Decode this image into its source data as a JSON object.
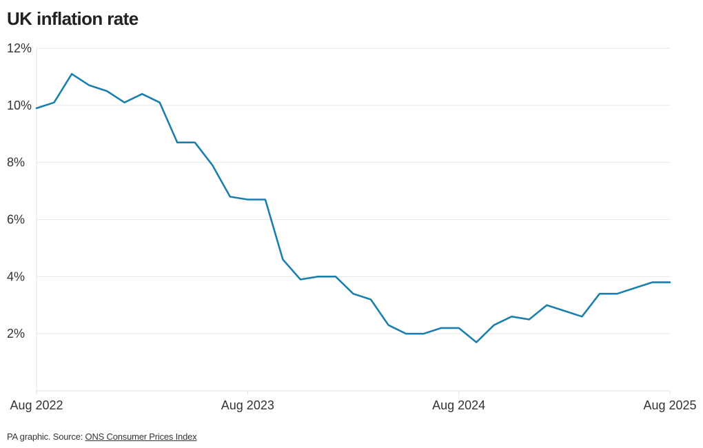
{
  "chart_data": {
    "type": "line",
    "title": "UK inflation rate",
    "xlabel": "",
    "ylabel": "",
    "x_tick_labels": [
      "Aug 2022",
      "Aug 2023",
      "Aug 2024",
      "Aug 2025"
    ],
    "y_tick_labels": [
      "2%",
      "4%",
      "6%",
      "8%",
      "10%",
      "12%"
    ],
    "y_ticks": [
      2,
      4,
      6,
      8,
      10,
      12
    ],
    "ylim": [
      0,
      12
    ],
    "xlim": [
      "2022-08",
      "2025-08"
    ],
    "grid": "horizontal",
    "legend": "none",
    "line_color": "#1a7fad",
    "x": [
      "2022-08",
      "2022-09",
      "2022-10",
      "2022-11",
      "2022-12",
      "2023-01",
      "2023-02",
      "2023-03",
      "2023-04",
      "2023-05",
      "2023-06",
      "2023-07",
      "2023-08",
      "2023-09",
      "2023-10",
      "2023-11",
      "2023-12",
      "2024-01",
      "2024-02",
      "2024-03",
      "2024-04",
      "2024-05",
      "2024-06",
      "2024-07",
      "2024-08",
      "2024-09",
      "2024-10",
      "2024-11",
      "2024-12",
      "2025-01",
      "2025-02",
      "2025-03",
      "2025-04",
      "2025-05",
      "2025-06",
      "2025-07",
      "2025-08"
    ],
    "series": [
      {
        "values": [
          9.9,
          10.1,
          11.1,
          10.7,
          10.5,
          10.1,
          10.4,
          10.1,
          8.7,
          8.7,
          7.9,
          6.8,
          6.7,
          6.7,
          4.6,
          3.9,
          4.0,
          4.0,
          3.4,
          3.2,
          2.3,
          2.0,
          2.0,
          2.2,
          2.2,
          1.7,
          2.3,
          2.6,
          2.5,
          3.0,
          2.8,
          2.6,
          3.4,
          3.4,
          3.6,
          3.8,
          3.8
        ]
      }
    ]
  },
  "footer": {
    "prefix": "PA graphic. Source: ",
    "link_text": "ONS Consumer Prices Index"
  }
}
